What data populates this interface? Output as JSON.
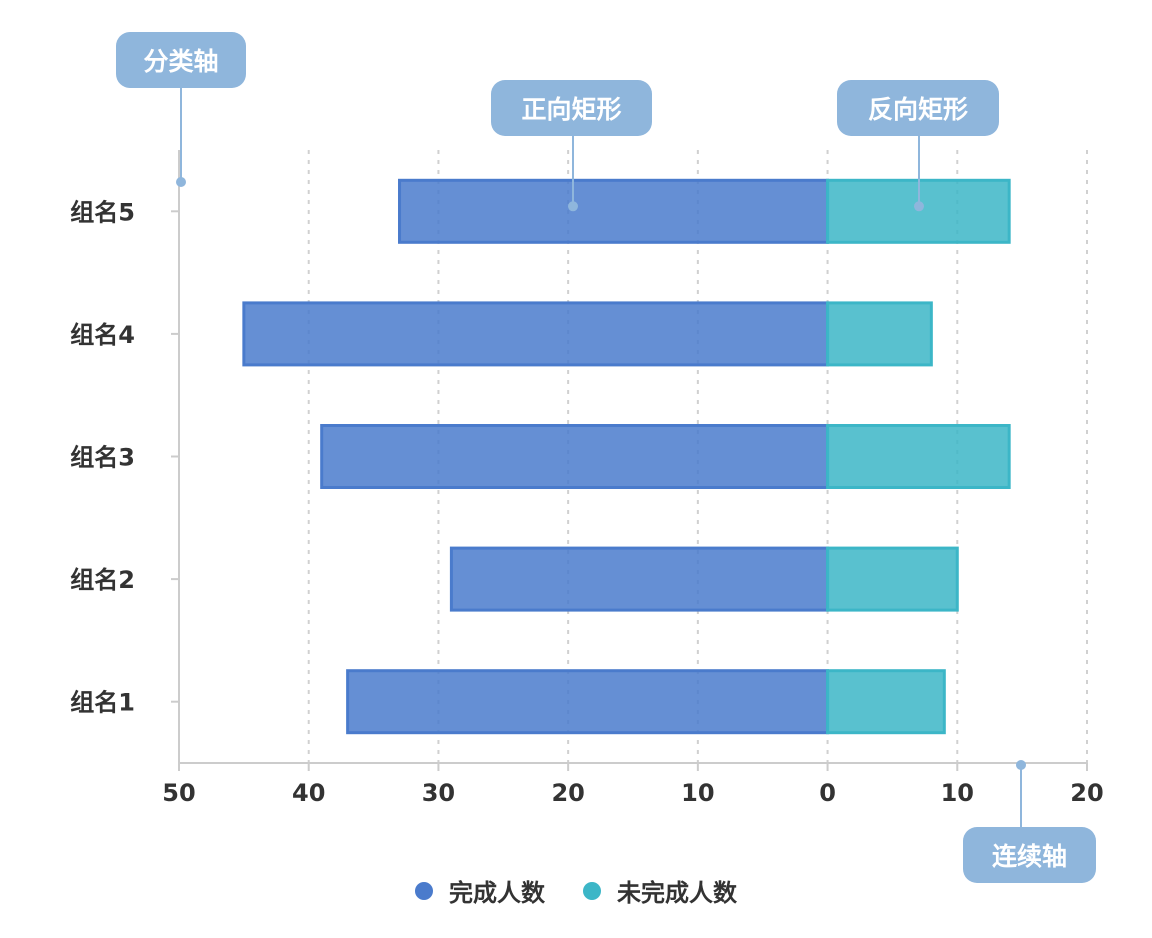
{
  "chart_data": {
    "type": "bar",
    "orientation": "horizontal",
    "stacked_diverging": true,
    "categories": [
      "组名1",
      "组名2",
      "组名3",
      "组名4",
      "组名5"
    ],
    "series": [
      {
        "name": "完成人数",
        "values": [
          37,
          29,
          39,
          45,
          33
        ],
        "direction": "negative",
        "color": "#4a7bcc"
      },
      {
        "name": "未完成人数",
        "values": [
          9,
          10,
          14,
          8,
          14
        ],
        "direction": "positive",
        "color": "#3cb6c7"
      }
    ],
    "x_ticks": [
      "50",
      "40",
      "30",
      "20",
      "10",
      "0",
      "10",
      "20"
    ],
    "xlim": [
      -50,
      20
    ],
    "grid": "vertical-dashed",
    "legend_position": "bottom-center"
  },
  "annotations": {
    "category_axis": "分类轴",
    "positive_rect": "正向矩形",
    "negative_rect": "反向矩形",
    "value_axis": "连续轴"
  },
  "colors": {
    "completed": "#4a7bcc",
    "incomplete": "#3cb6c7",
    "callout": "#8fb6dc"
  }
}
